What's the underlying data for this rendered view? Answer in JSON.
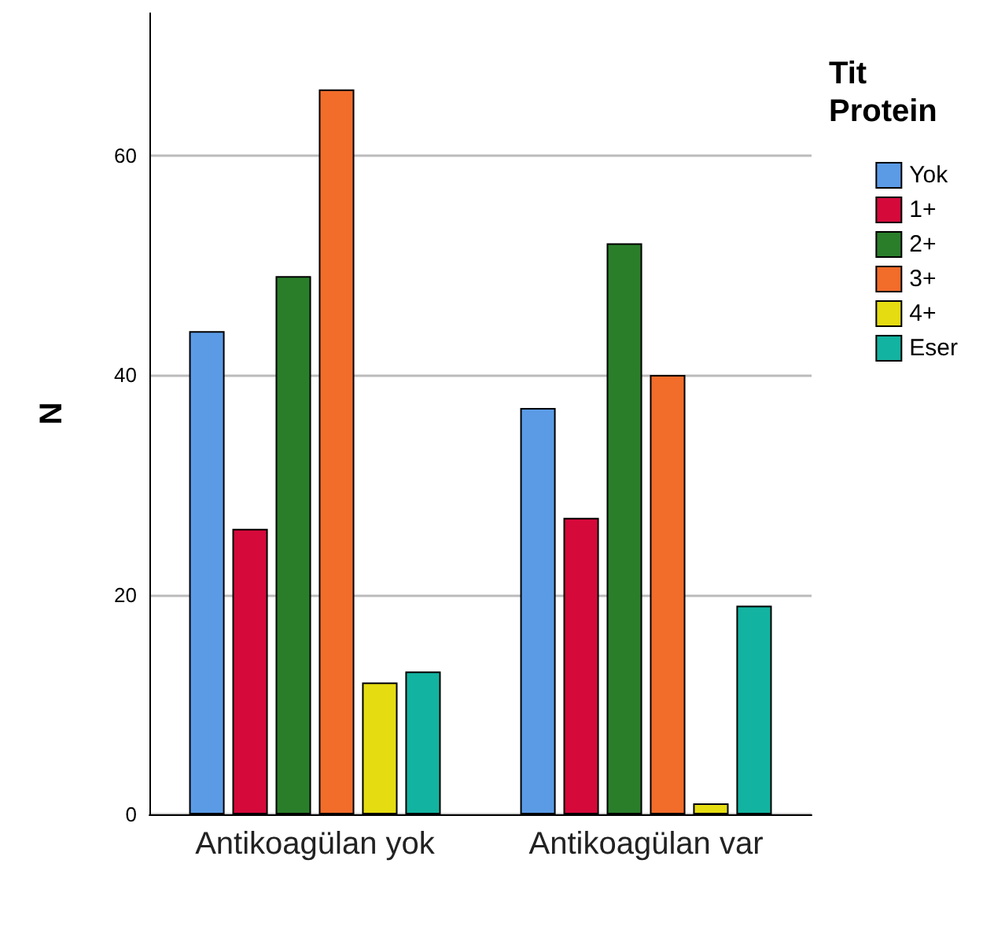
{
  "chart_data": {
    "type": "bar",
    "ylabel": "N",
    "legend_title": "Tit Protein",
    "categories": [
      "Antikoagülan yok",
      "Antikoagülan var"
    ],
    "series": [
      {
        "name": "Yok",
        "color": "#5b9be6",
        "values": [
          44,
          37
        ]
      },
      {
        "name": "1+",
        "color": "#d6093b",
        "values": [
          26,
          27
        ]
      },
      {
        "name": "2+",
        "color": "#2a7e2a",
        "values": [
          49,
          52
        ]
      },
      {
        "name": "3+",
        "color": "#f26c2a",
        "values": [
          66,
          40
        ]
      },
      {
        "name": "4+",
        "color": "#e5dc12",
        "values": [
          12,
          1
        ]
      },
      {
        "name": "Eser",
        "color": "#12b3a0",
        "values": [
          13,
          19
        ]
      }
    ],
    "ylim": [
      0,
      73
    ],
    "yticks": [
      0,
      20,
      40,
      60
    ],
    "grid": "y",
    "legend": "right"
  }
}
